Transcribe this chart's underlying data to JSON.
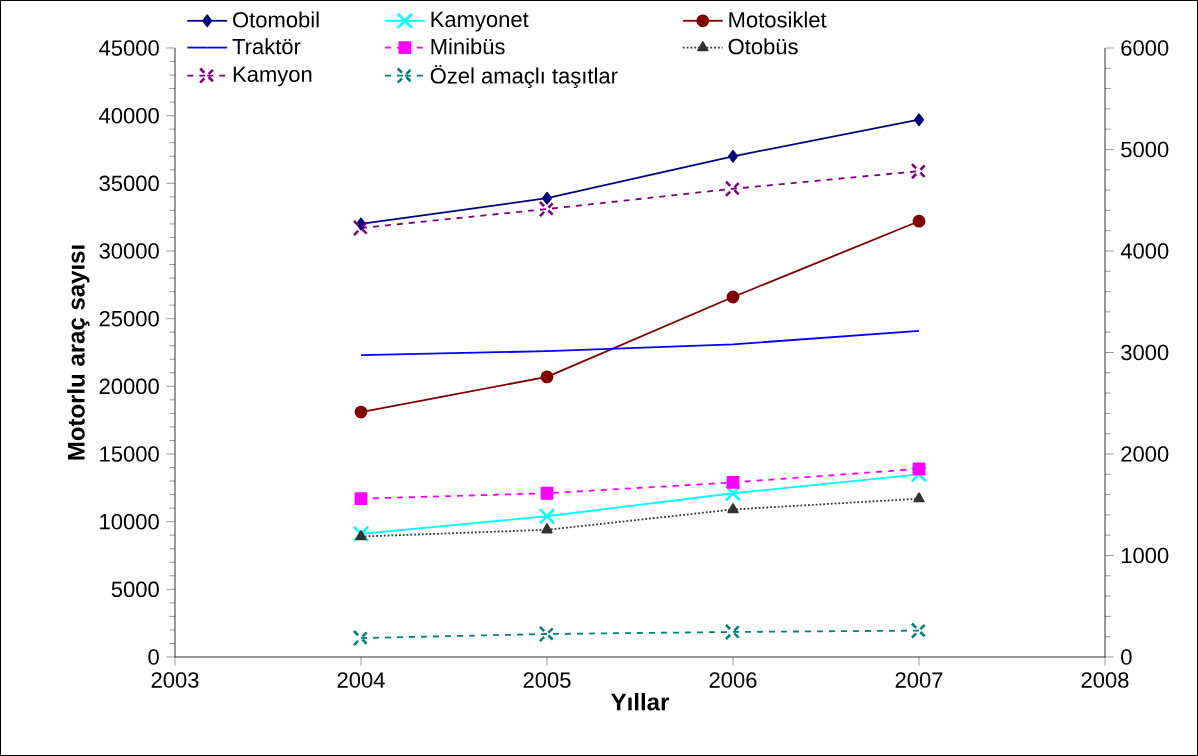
{
  "chart_data": {
    "type": "line",
    "xlabel": "Yıllar",
    "ylabel": "Motorlu araç sayısı",
    "x": [
      2004,
      2005,
      2006,
      2007
    ],
    "xlim": [
      2003,
      2008
    ],
    "xticks": [
      2003,
      2004,
      2005,
      2006,
      2007,
      2008
    ],
    "ylim": [
      0,
      45000
    ],
    "yticks": [
      0,
      5000,
      10000,
      15000,
      20000,
      25000,
      30000,
      35000,
      40000,
      45000
    ],
    "y2lim": [
      0,
      6000
    ],
    "y2ticks": [
      0,
      1000,
      2000,
      3000,
      4000,
      5000,
      6000
    ],
    "legend": "top",
    "grid": false,
    "series": [
      {
        "name": "Otomobil",
        "color": "#000080",
        "marker": "diamond",
        "line_style": "solid",
        "values": [
          32000,
          33900,
          37000,
          39700
        ]
      },
      {
        "name": "Kamyonet",
        "color": "#00ffff",
        "marker": "cross",
        "line_style": "solid",
        "values": [
          9100,
          10400,
          12100,
          13500
        ]
      },
      {
        "name": "Motosiklet",
        "color": "#800000",
        "marker": "circle",
        "line_style": "solid",
        "values": [
          18100,
          20700,
          26600,
          32200
        ]
      },
      {
        "name": "Traktör",
        "color": "#0000ff",
        "marker": "none",
        "line_style": "solid",
        "values": [
          22300,
          22600,
          23100,
          24100
        ]
      },
      {
        "name": "Minibüs",
        "color": "#ff00ff",
        "marker": "square",
        "line_style": "dashed",
        "values": [
          11700,
          12100,
          12900,
          13900
        ]
      },
      {
        "name": "Otobüs",
        "color": "#333333",
        "marker": "triangle",
        "line_style": "dotted",
        "values": [
          8900,
          9400,
          10900,
          11700
        ]
      },
      {
        "name": "Kamyon",
        "color": "#800080",
        "marker": "cross",
        "line_style": "dashed",
        "values": [
          31700,
          33100,
          34600,
          35900
        ]
      },
      {
        "name": "Özel amaçlı taşıtlar",
        "color": "#008080",
        "marker": "cross",
        "line_style": "dashed",
        "values": [
          1400,
          1700,
          1850,
          1950
        ]
      }
    ]
  }
}
